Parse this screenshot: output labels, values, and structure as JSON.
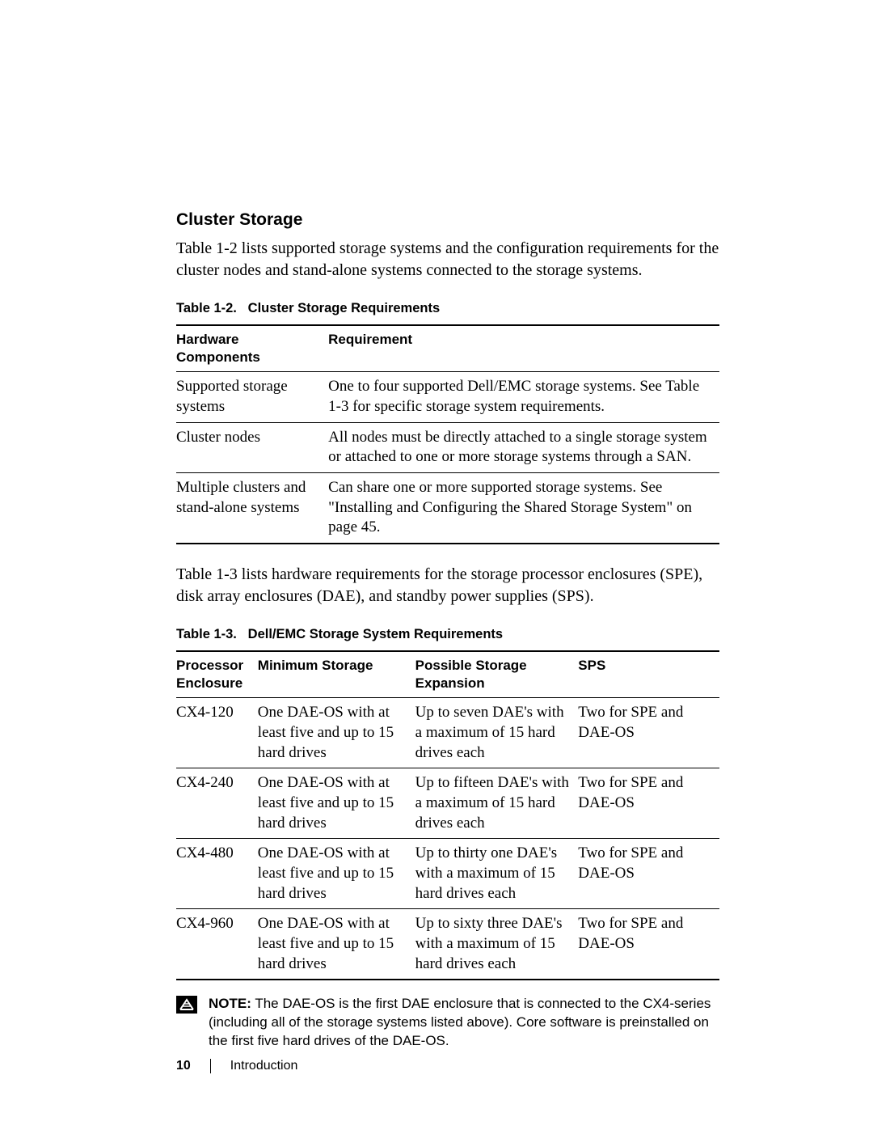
{
  "heading": "Cluster Storage",
  "intro": "Table 1-2 lists supported storage systems and the configuration requirements for the cluster nodes and stand-alone systems connected to the storage systems.",
  "table12": {
    "caption_label": "Table 1-2.",
    "caption_title": "Cluster Storage Requirements",
    "columns": [
      "Hardware Components",
      "Requirement"
    ],
    "col_widths": [
      "28%",
      "72%"
    ],
    "rows": [
      [
        "Supported storage systems",
        "One to four supported Dell/EMC storage systems. See Table 1-3 for specific storage system requirements."
      ],
      [
        "Cluster nodes",
        "All nodes must be directly attached to a single storage system or attached to one or more storage systems through a SAN."
      ],
      [
        "Multiple clusters and stand-alone systems",
        "Can share one or more supported storage systems. See \"Installing and Configuring the Shared Storage System\" on page 45."
      ]
    ]
  },
  "between_tables": "Table 1-3 lists hardware requirements for the storage processor enclosures (SPE), disk array enclosures (DAE), and standby power supplies (SPS).",
  "table13": {
    "caption_label": "Table 1-3.",
    "caption_title": "Dell/EMC Storage System Requirements",
    "columns": [
      "Processor Enclosure",
      "Minimum Storage",
      "Possible Storage Expansion",
      "SPS"
    ],
    "col_widths": [
      "15%",
      "29%",
      "30%",
      "26%"
    ],
    "rows": [
      [
        "CX4-120",
        "One DAE-OS with at least five and up to 15 hard drives",
        "Up to seven DAE's with a maximum of 15 hard drives each",
        "Two for SPE and DAE-OS"
      ],
      [
        "CX4-240",
        "One DAE-OS with at least five and up to 15 hard drives",
        "Up to fifteen DAE's with a maximum of 15 hard drives each",
        "Two for SPE and DAE-OS"
      ],
      [
        "CX4-480",
        "One DAE-OS with at least five and up to 15 hard drives",
        "Up to thirty one DAE's with a maximum of 15 hard drives each",
        "Two for SPE and DAE-OS"
      ],
      [
        "CX4-960",
        "One DAE-OS with at least five and up to 15 hard drives",
        "Up to sixty three DAE's with a maximum of 15 hard drives each",
        "Two for SPE and DAE-OS"
      ]
    ]
  },
  "note": {
    "label": "NOTE:",
    "text": "The DAE-OS is the first DAE enclosure that is connected to the CX4-series (including all of the storage systems listed above). Core software is preinstalled on the first five hard drives of the DAE-OS."
  },
  "footer": {
    "page_number": "10",
    "section": "Introduction"
  }
}
